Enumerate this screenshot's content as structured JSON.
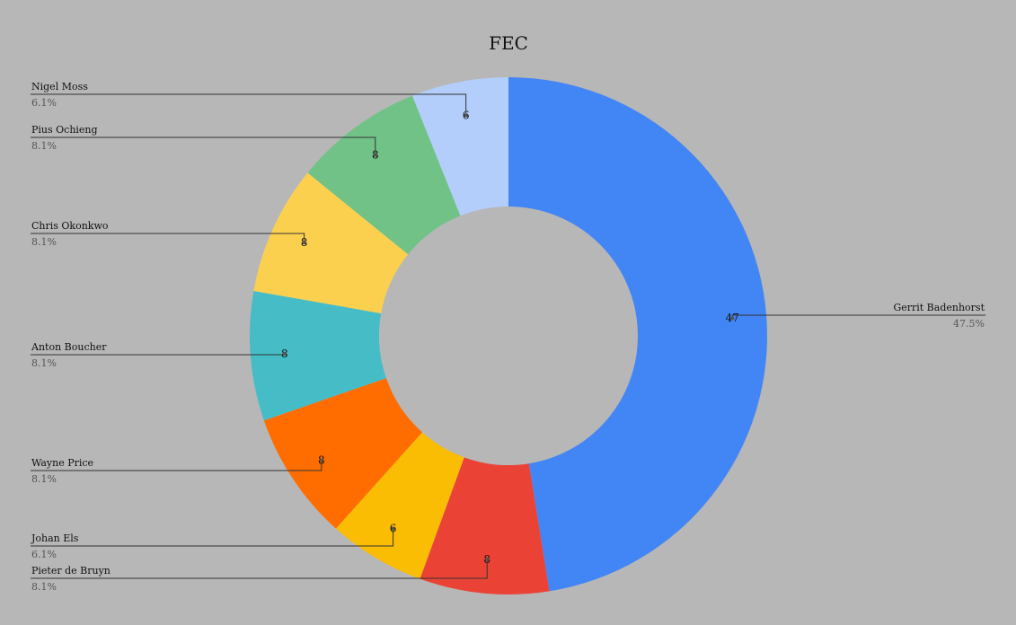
{
  "chart_data": {
    "type": "pie",
    "donut": true,
    "title": "FEC",
    "start_angle_deg": 0,
    "direction": "clockwise",
    "slices": [
      {
        "name": "Gerrit Badenhorst",
        "value": 47,
        "percent": "47.5%",
        "color": "#4285f4"
      },
      {
        "name": "Pieter de Bruyn",
        "value": 8,
        "percent": "8.1%",
        "color": "#ea4335"
      },
      {
        "name": "Johan Els",
        "value": 6,
        "percent": "6.1%",
        "color": "#fbbc04"
      },
      {
        "name": "Wayne Price",
        "value": 8,
        "percent": "8.1%",
        "color": "#ff6d01"
      },
      {
        "name": "Anton Boucher",
        "value": 8,
        "percent": "8.1%",
        "color": "#46bdc6"
      },
      {
        "name": "Chris Okonkwo",
        "value": 8,
        "percent": "8.1%",
        "color": "#fcd04f"
      },
      {
        "name": "Pius Ochieng",
        "value": 8,
        "percent": "8.1%",
        "color": "#71c287"
      },
      {
        "name": "Nigel Moss",
        "value": 6,
        "percent": "6.1%",
        "color": "#b3cefb"
      }
    ],
    "background": "#b7b7b7"
  }
}
